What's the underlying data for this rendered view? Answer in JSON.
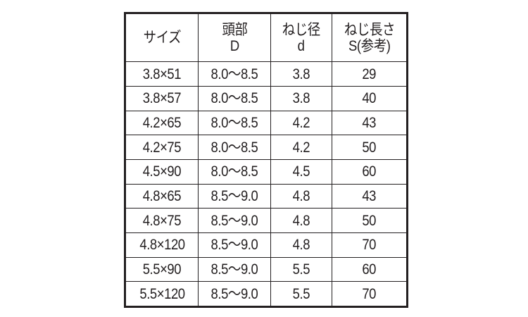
{
  "headers": [
    {
      "line1": "サイズ",
      "line2": ""
    },
    {
      "line1": "頭部",
      "line2": "D"
    },
    {
      "line1": "ねじ径",
      "line2": "d"
    },
    {
      "line1": "ねじ長さ",
      "line2": "S(参考)"
    }
  ],
  "rows": [
    [
      "3.8×51",
      "8.0〜8.5",
      "3.8",
      "29"
    ],
    [
      "3.8×57",
      "8.0〜8.5",
      "3.8",
      "40"
    ],
    [
      "4.2×65",
      "8.0〜8.5",
      "4.2",
      "43"
    ],
    [
      "4.2×75",
      "8.0〜8.5",
      "4.2",
      "50"
    ],
    [
      "4.5×90",
      "8.0〜8.5",
      "4.5",
      "60"
    ],
    [
      "4.8×65",
      "8.5〜9.0",
      "4.8",
      "43"
    ],
    [
      "4.8×75",
      "8.5〜9.0",
      "4.8",
      "50"
    ],
    [
      "4.8×120",
      "8.5〜9.0",
      "4.8",
      "70"
    ],
    [
      "5.5×90",
      "8.5〜9.0",
      "5.5",
      "60"
    ],
    [
      "5.5×120",
      "8.5〜9.0",
      "5.5",
      "70"
    ]
  ]
}
